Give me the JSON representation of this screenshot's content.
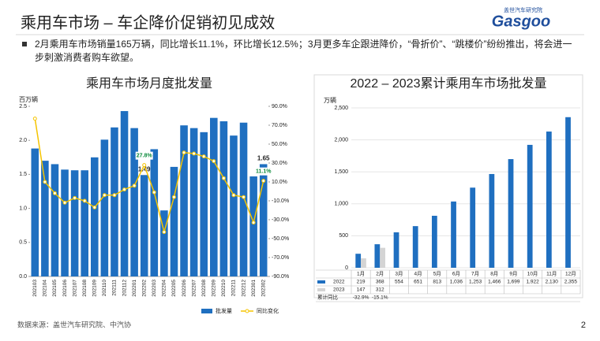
{
  "title": "乘用车市场 – 车企降价促销初见成效",
  "logo": {
    "name": "盖世汽车研究院",
    "brand": "Gasgoo"
  },
  "bullet": "2月乘用车市场销量165万辆，同比增长11.1%，环比增长12.5%；3月更多车企跟进降价，“骨折价”、“跳楼价”纷纷推出，将会进一步刺激消费者购车欲望。",
  "source": "数据来源：盖世汽车研究院、中汽协",
  "page_number": "2",
  "chart_data": [
    {
      "type": "bar",
      "title": "乘用车市场月度批发量",
      "y_label": "百万辆",
      "categories": [
        "202103",
        "202104",
        "202105",
        "202106",
        "202107",
        "202108",
        "202109",
        "202110",
        "202111",
        "202112",
        "202201",
        "202202",
        "202203",
        "202204",
        "202205",
        "202206",
        "202207",
        "202208",
        "202209",
        "202210",
        "202211",
        "202212",
        "202301",
        "202302"
      ],
      "series": [
        {
          "name": "批发量",
          "color": "#1f6fc0",
          "values": [
            1.88,
            1.7,
            1.65,
            1.57,
            1.56,
            1.56,
            1.75,
            2.01,
            2.19,
            2.43,
            2.18,
            1.49,
            1.87,
            0.97,
            1.61,
            2.22,
            2.18,
            2.12,
            2.33,
            2.28,
            2.07,
            2.26,
            1.47,
            1.65
          ],
          "value_labels": [
            null,
            null,
            null,
            null,
            null,
            null,
            null,
            null,
            null,
            null,
            null,
            "1.49",
            null,
            null,
            null,
            null,
            null,
            null,
            null,
            null,
            null,
            null,
            null,
            "1.65"
          ]
        },
        {
          "name": "同比变化",
          "type": "line",
          "axis": "y2",
          "color": "#f5c400",
          "values": [
            77,
            10,
            -2,
            -12,
            -7,
            -10,
            -17,
            -4,
            -4,
            2,
            6,
            27.8,
            -1,
            -43,
            -6,
            41,
            40,
            37,
            32,
            14,
            -4,
            -6,
            -33,
            11.1
          ],
          "value_labels": [
            null,
            null,
            null,
            null,
            null,
            null,
            null,
            null,
            null,
            null,
            null,
            "27.8%",
            null,
            null,
            null,
            null,
            null,
            null,
            null,
            null,
            null,
            null,
            null,
            "11.1%"
          ]
        }
      ],
      "ylim": [
        0,
        2.5
      ],
      "yticks": [
        {
          "value": 0,
          "label": "0.0"
        },
        0.5,
        {
          "value": 1,
          "label": "1.0"
        },
        1.5,
        {
          "value": 2,
          "label": "2.0"
        },
        2.5
      ],
      "y2lim": [
        -90,
        90
      ],
      "y2ticks": [
        {
          "value": 90,
          "label": "90.0%"
        },
        {
          "value": 70,
          "label": "70.0%"
        },
        {
          "value": 50,
          "label": "50.0%"
        },
        {
          "value": 30,
          "label": "30.0%"
        },
        {
          "value": 10,
          "label": "10.0%"
        },
        {
          "value": -10,
          "label": "-10.0%"
        },
        {
          "value": -30,
          "label": "-30.0%"
        },
        {
          "value": -50,
          "label": "-50.0%"
        },
        {
          "value": -70,
          "label": "-70.0%"
        },
        {
          "value": -90,
          "label": "-90.0%"
        }
      ],
      "grid": false,
      "legend": "bottom"
    },
    {
      "type": "bar",
      "title": "2022 – 2023累计乘用车市场批发量",
      "y_label": "万辆",
      "categories": [
        "1月",
        "2月",
        "3月",
        "4月",
        "5月",
        "6月",
        "7月",
        "8月",
        "9月",
        "10月",
        "11月",
        "12月"
      ],
      "series": [
        {
          "name": "2022",
          "color": "#1f6fc0",
          "values": [
            219,
            368,
            554,
            651,
            813,
            1036,
            1253,
            1466,
            1699,
            1922,
            2130,
            2355
          ],
          "value_labels": [
            "219",
            "368",
            "554",
            "651",
            "813",
            "1,036",
            "1,253",
            "1,466",
            "1,699",
            "1,922",
            "2,130",
            "2,355"
          ]
        },
        {
          "name": "2023",
          "color": "#d4d4d4",
          "values": [
            147,
            312,
            null,
            null,
            null,
            null,
            null,
            null,
            null,
            null,
            null,
            null
          ]
        }
      ],
      "table_row": {
        "name": "累计同比",
        "values": [
          -32.9,
          -15.1,
          null,
          null,
          null,
          null,
          null,
          null,
          null,
          null,
          null,
          null
        ],
        "value_labels": [
          "-32.9%",
          "-15.1%",
          null,
          null,
          null,
          null,
          null,
          null,
          null,
          null,
          null,
          null
        ]
      },
      "ylim": [
        0,
        2500
      ],
      "yticks": [
        0,
        500,
        {
          "value": 1000,
          "label": "1,000"
        },
        {
          "value": 1500,
          "label": "1,500"
        },
        {
          "value": 2000,
          "label": "2,000"
        },
        {
          "value": 2500,
          "label": "2,500"
        }
      ],
      "grid": true
    }
  ]
}
